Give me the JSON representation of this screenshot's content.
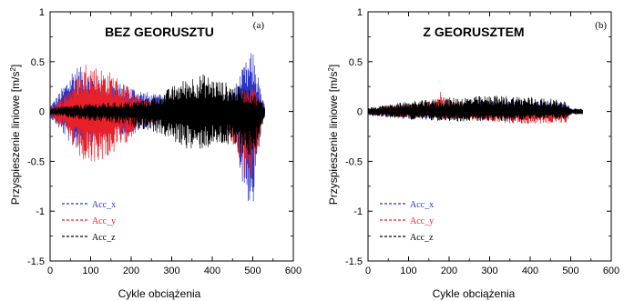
{
  "chart_data": [
    {
      "type": "line",
      "panel_label": "(a)",
      "title": "BEZ GEORUSZTU",
      "xlabel": "Cykle obciążenia",
      "ylabel_main": "Przyspieszenie  liniowe [m/s",
      "ylabel_sup": "2",
      "ylabel_end": "]",
      "xlim": [
        0,
        600
      ],
      "ylim": [
        -1.5,
        1
      ],
      "x_ticks": [
        "0",
        "100",
        "200",
        "300",
        "400",
        "500",
        "600"
      ],
      "y_ticks": [
        "1",
        "0.5",
        "0",
        "-0.5",
        "-1",
        "-1.5"
      ],
      "x_range": [
        0,
        530
      ],
      "legend": {
        "placement": "bottom-left",
        "entries": [
          "Acc_x",
          "Acc_y",
          "Acc_z"
        ]
      },
      "series": [
        {
          "name": "Acc_x",
          "color": "#2b35c4",
          "x": [
            0,
            30,
            60,
            100,
            150,
            200,
            250,
            300,
            350,
            400,
            430,
            460,
            480,
            500,
            510,
            520,
            530
          ],
          "upper": [
            0.06,
            0.24,
            0.48,
            0.4,
            0.3,
            0.26,
            0.18,
            0.15,
            0.06,
            0.06,
            0.08,
            0.3,
            0.48,
            0.62,
            0.45,
            0.2,
            0.05
          ],
          "lower": [
            -0.06,
            -0.22,
            -0.38,
            -0.33,
            -0.25,
            -0.22,
            -0.15,
            -0.12,
            -0.05,
            -0.05,
            -0.08,
            -0.38,
            -0.85,
            -1.02,
            -0.6,
            -0.25,
            -0.05
          ]
        },
        {
          "name": "Acc_y",
          "color": "#e8202a",
          "x": [
            0,
            30,
            60,
            90,
            120,
            150,
            180,
            220,
            250,
            280,
            320,
            400,
            460,
            490,
            520,
            530
          ],
          "upper": [
            0.04,
            0.14,
            0.32,
            0.52,
            0.45,
            0.4,
            0.3,
            0.16,
            0.12,
            0.08,
            0.06,
            0.05,
            0.12,
            0.3,
            0.12,
            0.03
          ],
          "lower": [
            -0.04,
            -0.18,
            -0.4,
            -0.58,
            -0.5,
            -0.45,
            -0.35,
            -0.18,
            -0.12,
            -0.08,
            -0.06,
            -0.06,
            -0.4,
            -0.85,
            -0.2,
            -0.03
          ]
        },
        {
          "name": "Acc_z",
          "color": "#000000",
          "x": [
            0,
            50,
            100,
            150,
            200,
            250,
            280,
            320,
            350,
            380,
            400,
            430,
            460,
            480,
            500,
            520,
            530
          ],
          "upper": [
            0.04,
            0.06,
            0.08,
            0.09,
            0.1,
            0.14,
            0.2,
            0.3,
            0.36,
            0.38,
            0.34,
            0.3,
            0.26,
            0.24,
            0.2,
            0.12,
            0.04
          ],
          "lower": [
            -0.04,
            -0.07,
            -0.1,
            -0.12,
            -0.15,
            -0.2,
            -0.25,
            -0.34,
            -0.4,
            -0.38,
            -0.36,
            -0.34,
            -0.4,
            -0.44,
            -0.5,
            -0.2,
            -0.04
          ]
        }
      ]
    },
    {
      "type": "line",
      "panel_label": "(b)",
      "title": "Z GEORUSZTEM",
      "xlabel": "Cykle obciążenia",
      "ylabel_main": "Przyspieszenie  liniowe [m/s",
      "ylabel_sup": "2",
      "ylabel_end": "]",
      "xlim": [
        0,
        600
      ],
      "ylim": [
        -1.5,
        1
      ],
      "x_ticks": [
        "0",
        "100",
        "200",
        "300",
        "400",
        "500",
        "600"
      ],
      "y_ticks": [
        "1",
        "0.5",
        "0",
        "-0.5",
        "-1",
        "-1.5"
      ],
      "x_range": [
        0,
        530
      ],
      "legend": {
        "placement": "bottom-left",
        "entries": [
          "Acc_x",
          "Acc_y",
          "Acc_z"
        ]
      },
      "series": [
        {
          "name": "Acc_x",
          "color": "#2b35c4",
          "x": [
            0,
            50,
            100,
            150,
            200,
            250,
            300,
            350,
            400,
            450,
            490,
            500,
            530
          ],
          "upper": [
            0.04,
            0.06,
            0.07,
            0.08,
            0.09,
            0.1,
            0.11,
            0.11,
            0.11,
            0.1,
            0.08,
            0.03,
            0.03
          ],
          "lower": [
            -0.04,
            -0.06,
            -0.07,
            -0.07,
            -0.07,
            -0.07,
            -0.07,
            -0.07,
            -0.07,
            -0.07,
            -0.06,
            -0.03,
            -0.03
          ]
        },
        {
          "name": "Acc_y",
          "color": "#e8202a",
          "x": [
            0,
            50,
            100,
            150,
            180,
            200,
            250,
            300,
            350,
            400,
            450,
            490,
            500,
            530
          ],
          "upper": [
            0.03,
            0.06,
            0.08,
            0.1,
            0.2,
            0.11,
            0.1,
            0.09,
            0.08,
            0.08,
            0.07,
            0.06,
            0.02,
            0.02
          ],
          "lower": [
            -0.03,
            -0.05,
            -0.06,
            -0.07,
            -0.08,
            -0.08,
            -0.09,
            -0.1,
            -0.12,
            -0.13,
            -0.12,
            -0.12,
            -0.02,
            -0.02
          ]
        },
        {
          "name": "Acc_z",
          "color": "#000000",
          "x": [
            0,
            50,
            100,
            150,
            200,
            250,
            300,
            350,
            400,
            450,
            490,
            500,
            530
          ],
          "upper": [
            0.04,
            0.07,
            0.1,
            0.12,
            0.14,
            0.15,
            0.16,
            0.16,
            0.15,
            0.13,
            0.1,
            0.03,
            0.03
          ],
          "lower": [
            -0.04,
            -0.06,
            -0.08,
            -0.09,
            -0.1,
            -0.1,
            -0.1,
            -0.1,
            -0.09,
            -0.08,
            -0.07,
            -0.03,
            -0.03
          ]
        }
      ]
    }
  ]
}
